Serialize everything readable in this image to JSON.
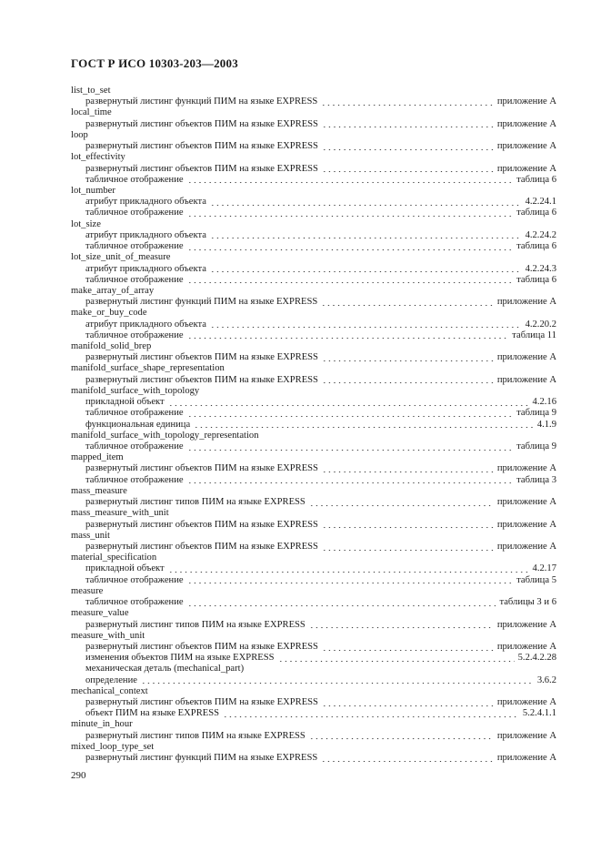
{
  "header": {
    "title": "ГОСТ Р ИСО 10303-203—2003"
  },
  "page_number": "290",
  "entries": [
    {
      "term": "list_to_set",
      "refs": [
        {
          "text": "развернутый листинг функций ПИМ на языке EXPRESS",
          "ref": "приложение А"
        }
      ]
    },
    {
      "term": "local_time",
      "refs": [
        {
          "text": "развернутый листинг объектов ПИМ на языке EXPRESS",
          "ref": "приложение А"
        }
      ]
    },
    {
      "term": "loop",
      "refs": [
        {
          "text": "развернутый листинг объектов ПИМ на языке EXPRESS",
          "ref": "приложение А"
        }
      ]
    },
    {
      "term": "lot_effectivity",
      "refs": [
        {
          "text": "развернутый листинг объектов ПИМ на языке EXPRESS",
          "ref": "приложение А"
        },
        {
          "text": "табличное отображение",
          "ref": "таблица 6"
        }
      ]
    },
    {
      "term": "lot_number",
      "refs": [
        {
          "text": "атрибут прикладного объекта",
          "ref": "4.2.24.1"
        },
        {
          "text": "табличное отображение",
          "ref": "таблица 6"
        }
      ]
    },
    {
      "term": "lot_size",
      "refs": [
        {
          "text": "атрибут прикладного объекта",
          "ref": "4.2.24.2"
        },
        {
          "text": "табличное отображение",
          "ref": "таблица 6"
        }
      ]
    },
    {
      "term": "lot_size_unit_of_measure",
      "refs": [
        {
          "text": "атрибут прикладного объекта",
          "ref": "4.2.24.3"
        },
        {
          "text": "табличное отображение",
          "ref": "таблица 6"
        }
      ]
    },
    {
      "term": "make_array_of_array",
      "refs": [
        {
          "text": "развернутый листинг функций ПИМ на языке EXPRESS",
          "ref": "приложение А"
        }
      ]
    },
    {
      "term": "make_or_buy_code",
      "refs": [
        {
          "text": "атрибут прикладного объекта",
          "ref": "4.2.20.2"
        },
        {
          "text": "табличное отображение",
          "ref": "таблица 11"
        }
      ]
    },
    {
      "term": "manifold_solid_brep",
      "refs": [
        {
          "text": "развернутый листинг объектов ПИМ на языке EXPRESS",
          "ref": "приложение А"
        }
      ]
    },
    {
      "term": "manifold_surface_shape_representation",
      "refs": [
        {
          "text": "развернутый листинг объектов ПИМ на языке EXPRESS",
          "ref": "приложение А"
        }
      ]
    },
    {
      "term": "manifold_surface_with_topology",
      "refs": [
        {
          "text": "прикладной объект",
          "ref": "4.2.16"
        },
        {
          "text": "табличное отображение",
          "ref": "таблица 9"
        },
        {
          "text": "функциональная единица",
          "ref": "4.1.9"
        }
      ]
    },
    {
      "term": "manifold_surface_with_topology_representation",
      "refs": [
        {
          "text": "табличное отображение",
          "ref": "таблица 9"
        }
      ]
    },
    {
      "term": "mapped_item",
      "refs": [
        {
          "text": "развернутый листинг объектов ПИМ на языке EXPRESS",
          "ref": "приложение А"
        },
        {
          "text": "табличное отображение",
          "ref": "таблица 3"
        }
      ]
    },
    {
      "term": "mass_measure",
      "refs": [
        {
          "text": "развернутый листинг типов ПИМ на языке EXPRESS",
          "ref": "приложение А"
        }
      ]
    },
    {
      "term": "mass_measure_with_unit",
      "refs": [
        {
          "text": "развернутый листинг объектов ПИМ на языке EXPRESS",
          "ref": "приложение А"
        }
      ]
    },
    {
      "term": "mass_unit",
      "refs": [
        {
          "text": "развернутый листинг объектов ПИМ на языке EXPRESS",
          "ref": "приложение А"
        }
      ]
    },
    {
      "term": "material_specification",
      "refs": [
        {
          "text": "прикладной объект",
          "ref": "4.2.17"
        },
        {
          "text": "табличное отображение",
          "ref": "таблица 5"
        }
      ]
    },
    {
      "term": "measure",
      "refs": [
        {
          "text": "табличное отображение",
          "ref": "таблицы 3 и 6"
        }
      ]
    },
    {
      "term": "measure_value",
      "refs": [
        {
          "text": "развернутый листинг типов ПИМ на языке EXPRESS",
          "ref": "приложение А"
        }
      ]
    },
    {
      "term": "measure_with_unit",
      "refs": [
        {
          "text": "развернутый листинг объектов ПИМ на языке EXPRESS",
          "ref": "приложение А"
        },
        {
          "text": "изменения объектов ПИМ на языке EXPRESS",
          "ref": "5.2.4.2.28"
        },
        {
          "text": "механическая деталь (mechanical_part)",
          "ref": ""
        },
        {
          "text": "определение",
          "ref": "3.6.2"
        }
      ]
    },
    {
      "term": "mechanical_context",
      "refs": [
        {
          "text": "развернутый листинг объектов ПИМ на языке EXPRESS",
          "ref": "приложение А"
        },
        {
          "text": "объект ПИМ на языке EXPRESS",
          "ref": "5.2.4.1.1"
        }
      ]
    },
    {
      "term": "minute_in_hour",
      "refs": [
        {
          "text": "развернутый листинг типов ПИМ на языке EXPRESS",
          "ref": "приложение А"
        }
      ]
    },
    {
      "term": "mixed_loop_type_set",
      "refs": [
        {
          "text": "развернутый листинг функций ПИМ на языке EXPRESS",
          "ref": "приложение А"
        }
      ]
    }
  ]
}
